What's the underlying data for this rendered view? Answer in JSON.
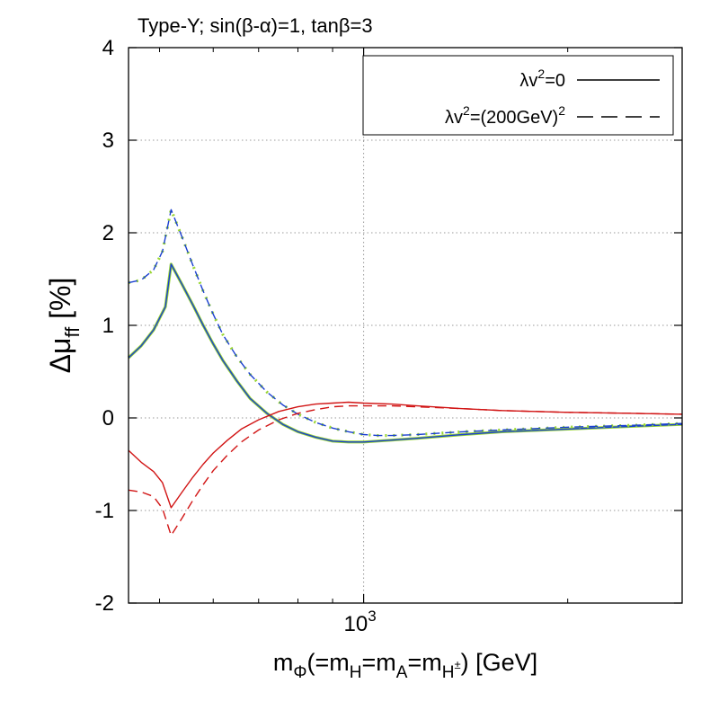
{
  "chart_data": {
    "type": "line",
    "title": "Type-Y; sin(β-α)=1, tanβ=3",
    "xlabel": {
      "m": "m",
      "sub_phi": "Φ",
      "mid": "(=m",
      "sub_H": "H",
      "eq1": "=m",
      "sub_A": "A",
      "eq2": "=m",
      "sub_Hpm": "H",
      "sup_pm": "±",
      "tail": ") [GeV]"
    },
    "ylabel": {
      "delta_mu": "Δμ",
      "sub": "ff",
      "unit": " [%]"
    },
    "x_scale": "log",
    "xlim": [
      450,
      2950
    ],
    "ylim": [
      -2,
      4
    ],
    "y_ticks": [
      {
        "value": -2,
        "label": "-2"
      },
      {
        "value": -1,
        "label": "-1"
      },
      {
        "value": 0,
        "label": "0"
      },
      {
        "value": 1,
        "label": "1"
      },
      {
        "value": 2,
        "label": "2"
      },
      {
        "value": 3,
        "label": "3"
      },
      {
        "value": 4,
        "label": "4"
      }
    ],
    "x_ticks": [
      {
        "value": 1000,
        "label_base": "10",
        "label_exp": "3"
      }
    ],
    "grid": true,
    "legend": {
      "placement": "top-right",
      "entries": [
        {
          "base": "λv",
          "exp": "2",
          "tail": "=0",
          "style": "solid"
        },
        {
          "base": "λv",
          "exp": "2",
          "tail": "=(200GeV)",
          "exp2": "2",
          "style": "dashed"
        }
      ]
    },
    "colors": {
      "blue": "#1a3fd0",
      "red": "#d11414",
      "green": "#9ad634",
      "grid": "#9a9a9a"
    },
    "series": [
      {
        "color": "blue",
        "style": "solid",
        "overlay": "green",
        "points": [
          [
            450,
            0.65
          ],
          [
            470,
            0.78
          ],
          [
            490,
            0.95
          ],
          [
            510,
            1.2
          ],
          [
            520,
            1.66
          ],
          [
            540,
            1.44
          ],
          [
            560,
            1.22
          ],
          [
            580,
            1.0
          ],
          [
            600,
            0.8
          ],
          [
            620,
            0.62
          ],
          [
            650,
            0.4
          ],
          [
            680,
            0.21
          ],
          [
            720,
            0.05
          ],
          [
            760,
            -0.07
          ],
          [
            800,
            -0.15
          ],
          [
            850,
            -0.21
          ],
          [
            900,
            -0.25
          ],
          [
            950,
            -0.26
          ],
          [
            1000,
            -0.26
          ],
          [
            1100,
            -0.24
          ],
          [
            1200,
            -0.22
          ],
          [
            1400,
            -0.18
          ],
          [
            1600,
            -0.15
          ],
          [
            2000,
            -0.12
          ],
          [
            2500,
            -0.09
          ],
          [
            2950,
            -0.07
          ]
        ]
      },
      {
        "color": "blue",
        "style": "dashed",
        "overlay": "green",
        "points": [
          [
            450,
            1.46
          ],
          [
            470,
            1.49
          ],
          [
            490,
            1.6
          ],
          [
            505,
            1.8
          ],
          [
            520,
            2.25
          ],
          [
            540,
            1.95
          ],
          [
            560,
            1.65
          ],
          [
            580,
            1.37
          ],
          [
            600,
            1.12
          ],
          [
            620,
            0.9
          ],
          [
            650,
            0.66
          ],
          [
            680,
            0.47
          ],
          [
            720,
            0.28
          ],
          [
            760,
            0.14
          ],
          [
            800,
            0.04
          ],
          [
            850,
            -0.05
          ],
          [
            900,
            -0.11
          ],
          [
            950,
            -0.15
          ],
          [
            1000,
            -0.18
          ],
          [
            1050,
            -0.19
          ],
          [
            1100,
            -0.19
          ],
          [
            1200,
            -0.18
          ],
          [
            1400,
            -0.15
          ],
          [
            1600,
            -0.13
          ],
          [
            2000,
            -0.1
          ],
          [
            2500,
            -0.08
          ],
          [
            2950,
            -0.06
          ]
        ]
      },
      {
        "color": "red",
        "style": "solid",
        "points": [
          [
            450,
            -0.35
          ],
          [
            470,
            -0.48
          ],
          [
            490,
            -0.58
          ],
          [
            505,
            -0.7
          ],
          [
            520,
            -0.97
          ],
          [
            540,
            -0.8
          ],
          [
            560,
            -0.64
          ],
          [
            580,
            -0.5
          ],
          [
            600,
            -0.38
          ],
          [
            630,
            -0.24
          ],
          [
            660,
            -0.12
          ],
          [
            700,
            -0.02
          ],
          [
            750,
            0.07
          ],
          [
            800,
            0.12
          ],
          [
            850,
            0.15
          ],
          [
            900,
            0.16
          ],
          [
            950,
            0.17
          ],
          [
            1000,
            0.16
          ],
          [
            1100,
            0.15
          ],
          [
            1200,
            0.13
          ],
          [
            1400,
            0.1
          ],
          [
            1600,
            0.08
          ],
          [
            2000,
            0.06
          ],
          [
            2500,
            0.05
          ],
          [
            2950,
            0.04
          ]
        ]
      },
      {
        "color": "red",
        "style": "dashed",
        "points": [
          [
            450,
            -0.78
          ],
          [
            470,
            -0.8
          ],
          [
            490,
            -0.85
          ],
          [
            505,
            -0.98
          ],
          [
            520,
            -1.27
          ],
          [
            540,
            -1.08
          ],
          [
            560,
            -0.89
          ],
          [
            580,
            -0.72
          ],
          [
            600,
            -0.57
          ],
          [
            630,
            -0.4
          ],
          [
            660,
            -0.26
          ],
          [
            700,
            -0.13
          ],
          [
            750,
            -0.02
          ],
          [
            800,
            0.05
          ],
          [
            850,
            0.09
          ],
          [
            900,
            0.12
          ],
          [
            950,
            0.13
          ],
          [
            1000,
            0.13
          ],
          [
            1100,
            0.13
          ],
          [
            1200,
            0.12
          ],
          [
            1400,
            0.1
          ],
          [
            1600,
            0.08
          ],
          [
            2000,
            0.06
          ],
          [
            2500,
            0.05
          ],
          [
            2950,
            0.04
          ]
        ]
      }
    ]
  }
}
